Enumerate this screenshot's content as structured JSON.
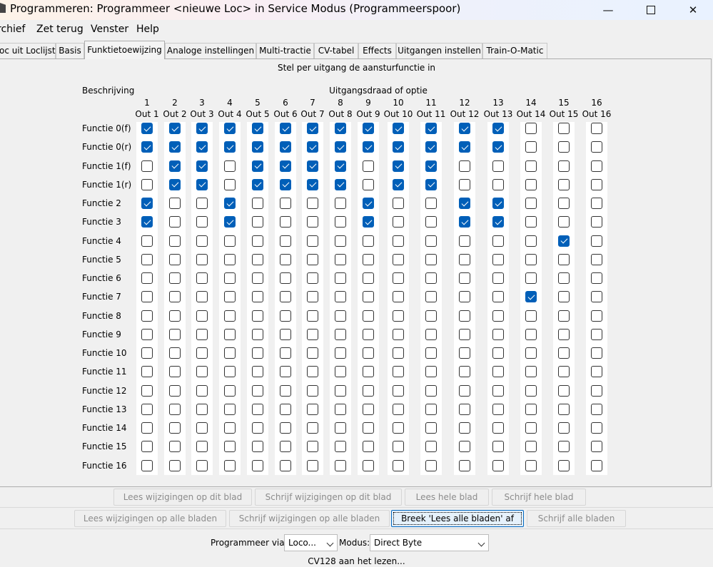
{
  "window": {
    "title": "Programmeren: Programmeer <nieuwe Loc> in Service Modus (Programmeerspoor)",
    "minimize_glyph": "—",
    "close_glyph": "✕"
  },
  "menu": [
    "rchief",
    "Zet terug",
    "Venster",
    "Help"
  ],
  "tabs": [
    "oc uit Loclijst",
    "Basis",
    "Funktietoewijzing",
    "Analoge instellingen",
    "Multi-tractie",
    "CV-tabel",
    "Effects",
    "Uitgangen instellen",
    "Train-O-Matic"
  ],
  "active_tab": "Funktietoewijzing",
  "panel": {
    "heading": "Stel per uitgang de aansturfunctie in",
    "desc_label": "Beschrijving",
    "output_label": "Uitgangsdraad of optie",
    "columns": [
      {
        "num": "1",
        "name": "Out 1"
      },
      {
        "num": "2",
        "name": "Out 2"
      },
      {
        "num": "3",
        "name": "Out 3"
      },
      {
        "num": "4",
        "name": "Out 4"
      },
      {
        "num": "5",
        "name": "Out 5"
      },
      {
        "num": "6",
        "name": "Out 6"
      },
      {
        "num": "7",
        "name": "Out 7"
      },
      {
        "num": "8",
        "name": "Out 8"
      },
      {
        "num": "9",
        "name": "Out 9"
      },
      {
        "num": "10",
        "name": "Out 10"
      },
      {
        "num": "11",
        "name": "Out 11"
      },
      {
        "num": "12",
        "name": "Out 12"
      },
      {
        "num": "13",
        "name": "Out 13"
      },
      {
        "num": "14",
        "name": "Out 14"
      },
      {
        "num": "15",
        "name": "Out 15"
      },
      {
        "num": "16",
        "name": "Out 16"
      }
    ],
    "rows": [
      {
        "label": "Functie 0(f)",
        "checked": [
          1,
          1,
          1,
          1,
          1,
          1,
          1,
          1,
          1,
          1,
          1,
          1,
          1,
          0,
          0,
          0
        ]
      },
      {
        "label": "Functie 0(r)",
        "checked": [
          1,
          1,
          1,
          1,
          1,
          1,
          1,
          1,
          1,
          1,
          1,
          1,
          1,
          0,
          0,
          0
        ]
      },
      {
        "label": "Functie 1(f)",
        "checked": [
          0,
          1,
          1,
          0,
          1,
          1,
          1,
          1,
          0,
          1,
          1,
          0,
          0,
          0,
          0,
          0
        ]
      },
      {
        "label": "Functie 1(r)",
        "checked": [
          0,
          1,
          1,
          0,
          1,
          1,
          1,
          1,
          0,
          1,
          1,
          0,
          0,
          0,
          0,
          0
        ]
      },
      {
        "label": "Functie 2",
        "checked": [
          1,
          0,
          0,
          1,
          0,
          0,
          0,
          0,
          1,
          0,
          0,
          1,
          1,
          0,
          0,
          0
        ]
      },
      {
        "label": "Functie 3",
        "checked": [
          1,
          0,
          0,
          1,
          0,
          0,
          0,
          0,
          1,
          0,
          0,
          1,
          1,
          0,
          0,
          0
        ]
      },
      {
        "label": "Functie 4",
        "checked": [
          0,
          0,
          0,
          0,
          0,
          0,
          0,
          0,
          0,
          0,
          0,
          0,
          0,
          0,
          1,
          0
        ]
      },
      {
        "label": "Functie 5",
        "checked": [
          0,
          0,
          0,
          0,
          0,
          0,
          0,
          0,
          0,
          0,
          0,
          0,
          0,
          0,
          0,
          0
        ]
      },
      {
        "label": "Functie 6",
        "checked": [
          0,
          0,
          0,
          0,
          0,
          0,
          0,
          0,
          0,
          0,
          0,
          0,
          0,
          0,
          0,
          0
        ]
      },
      {
        "label": "Functie 7",
        "checked": [
          0,
          0,
          0,
          0,
          0,
          0,
          0,
          0,
          0,
          0,
          0,
          0,
          0,
          1,
          0,
          0
        ]
      },
      {
        "label": "Functie 8",
        "checked": [
          0,
          0,
          0,
          0,
          0,
          0,
          0,
          0,
          0,
          0,
          0,
          0,
          0,
          0,
          0,
          0
        ]
      },
      {
        "label": "Functie 9",
        "checked": [
          0,
          0,
          0,
          0,
          0,
          0,
          0,
          0,
          0,
          0,
          0,
          0,
          0,
          0,
          0,
          0
        ]
      },
      {
        "label": "Functie 10",
        "checked": [
          0,
          0,
          0,
          0,
          0,
          0,
          0,
          0,
          0,
          0,
          0,
          0,
          0,
          0,
          0,
          0
        ]
      },
      {
        "label": "Functie 11",
        "checked": [
          0,
          0,
          0,
          0,
          0,
          0,
          0,
          0,
          0,
          0,
          0,
          0,
          0,
          0,
          0,
          0
        ]
      },
      {
        "label": "Functie 12",
        "checked": [
          0,
          0,
          0,
          0,
          0,
          0,
          0,
          0,
          0,
          0,
          0,
          0,
          0,
          0,
          0,
          0
        ]
      },
      {
        "label": "Functie 13",
        "checked": [
          0,
          0,
          0,
          0,
          0,
          0,
          0,
          0,
          0,
          0,
          0,
          0,
          0,
          0,
          0,
          0
        ]
      },
      {
        "label": "Functie 14",
        "checked": [
          0,
          0,
          0,
          0,
          0,
          0,
          0,
          0,
          0,
          0,
          0,
          0,
          0,
          0,
          0,
          0
        ]
      },
      {
        "label": "Functie 15",
        "checked": [
          0,
          0,
          0,
          0,
          0,
          0,
          0,
          0,
          0,
          0,
          0,
          0,
          0,
          0,
          0,
          0
        ]
      },
      {
        "label": "Functie 16",
        "checked": [
          0,
          0,
          0,
          0,
          0,
          0,
          0,
          0,
          0,
          0,
          0,
          0,
          0,
          0,
          0,
          0
        ]
      }
    ]
  },
  "buttons_row1": [
    "Lees wijzigingen op dit blad",
    "Schrijf wijzigingen op dit blad",
    "Lees hele blad",
    "Schrijf hele blad"
  ],
  "buttons_row2": [
    "Lees wijzigingen op alle bladen",
    "Schrijf wijzigingen op alle bladen",
    "Breek 'Lees alle bladen' af",
    "Schrijf alle bladen"
  ],
  "active_button": "Breek 'Lees alle bladen' af",
  "program": {
    "via_label": "Programmeer via:",
    "via_value": "Loco...",
    "mode_label": "Modus:",
    "mode_value": "Direct Byte"
  },
  "status": "CV128 aan het lezen...",
  "colors": {
    "checked": "#005fb8",
    "focus": "#0067c0"
  }
}
